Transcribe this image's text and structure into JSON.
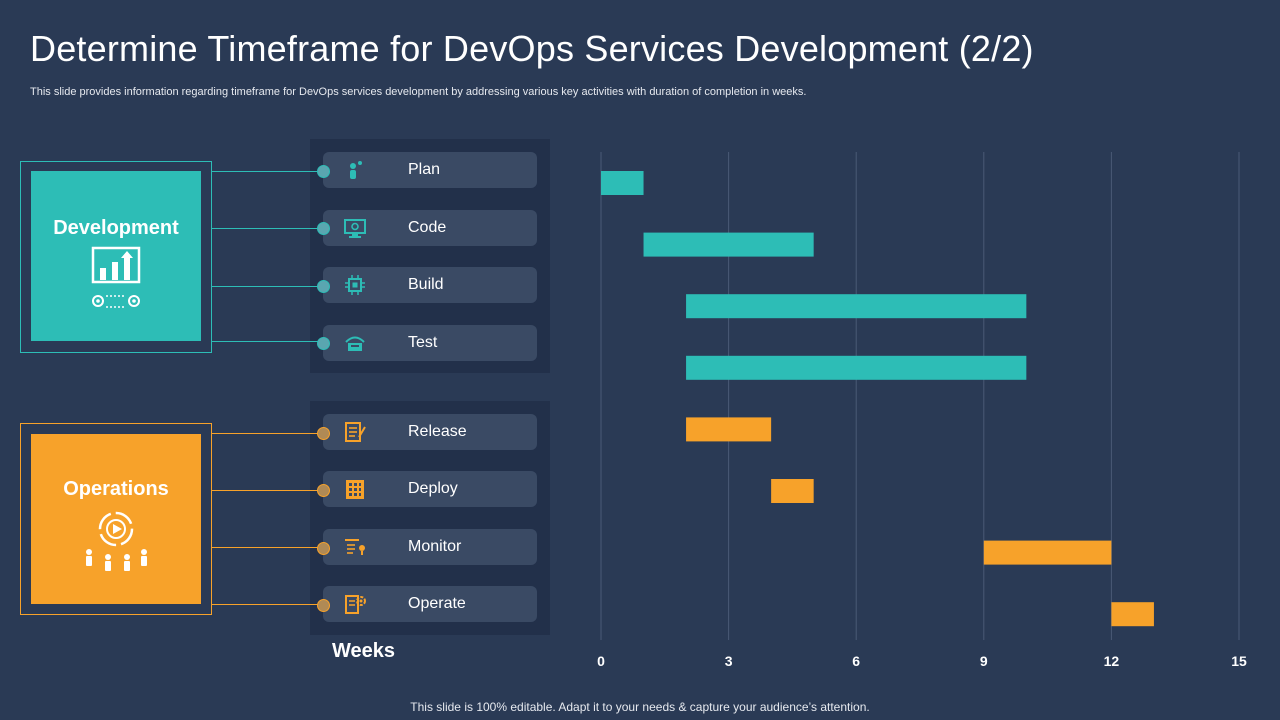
{
  "title": "Determine Timeframe for DevOps Services Development (2/2)",
  "subtitle": "This slide provides information regarding timeframe for DevOps services development by addressing various key activities with duration of completion in weeks.",
  "footer": "This slide is 100% editable. Adapt it to your needs & capture your audience’s attention.",
  "colors": {
    "development": "#2dbdb6",
    "operations": "#f7a22a",
    "background": "#2a3a55"
  },
  "groups": {
    "development": {
      "label": "Development",
      "icon": "chart-growth-icon"
    },
    "operations": {
      "label": "Operations",
      "icon": "cycle-play-icon"
    }
  },
  "activities": [
    {
      "label": "Plan",
      "icon": "person-idea-icon"
    },
    {
      "label": "Code",
      "icon": "monitor-code-icon"
    },
    {
      "label": "Build",
      "icon": "chip-icon"
    },
    {
      "label": "Test",
      "icon": "test-device-icon"
    },
    {
      "label": "Release",
      "icon": "checklist-icon"
    },
    {
      "label": "Deploy",
      "icon": "building-icon"
    },
    {
      "label": "Monitor",
      "icon": "monitor-stats-icon"
    },
    {
      "label": "Operate",
      "icon": "document-gear-icon"
    }
  ],
  "chart_data": {
    "type": "gantt",
    "xlabel": "Weeks",
    "xlim": [
      0,
      15
    ],
    "ticks": [
      0,
      3,
      6,
      9,
      12,
      15
    ],
    "grid": true,
    "tasks": [
      {
        "name": "Plan",
        "group": "development",
        "start": 0,
        "end": 1
      },
      {
        "name": "Code",
        "group": "development",
        "start": 1,
        "end": 5
      },
      {
        "name": "Build",
        "group": "development",
        "start": 2,
        "end": 10
      },
      {
        "name": "Test",
        "group": "development",
        "start": 2,
        "end": 10
      },
      {
        "name": "Release",
        "group": "operations",
        "start": 2,
        "end": 4
      },
      {
        "name": "Deploy",
        "group": "operations",
        "start": 4,
        "end": 5
      },
      {
        "name": "Monitor",
        "group": "operations",
        "start": 9,
        "end": 12
      },
      {
        "name": "Operate",
        "group": "operations",
        "start": 12,
        "end": 13
      }
    ]
  }
}
